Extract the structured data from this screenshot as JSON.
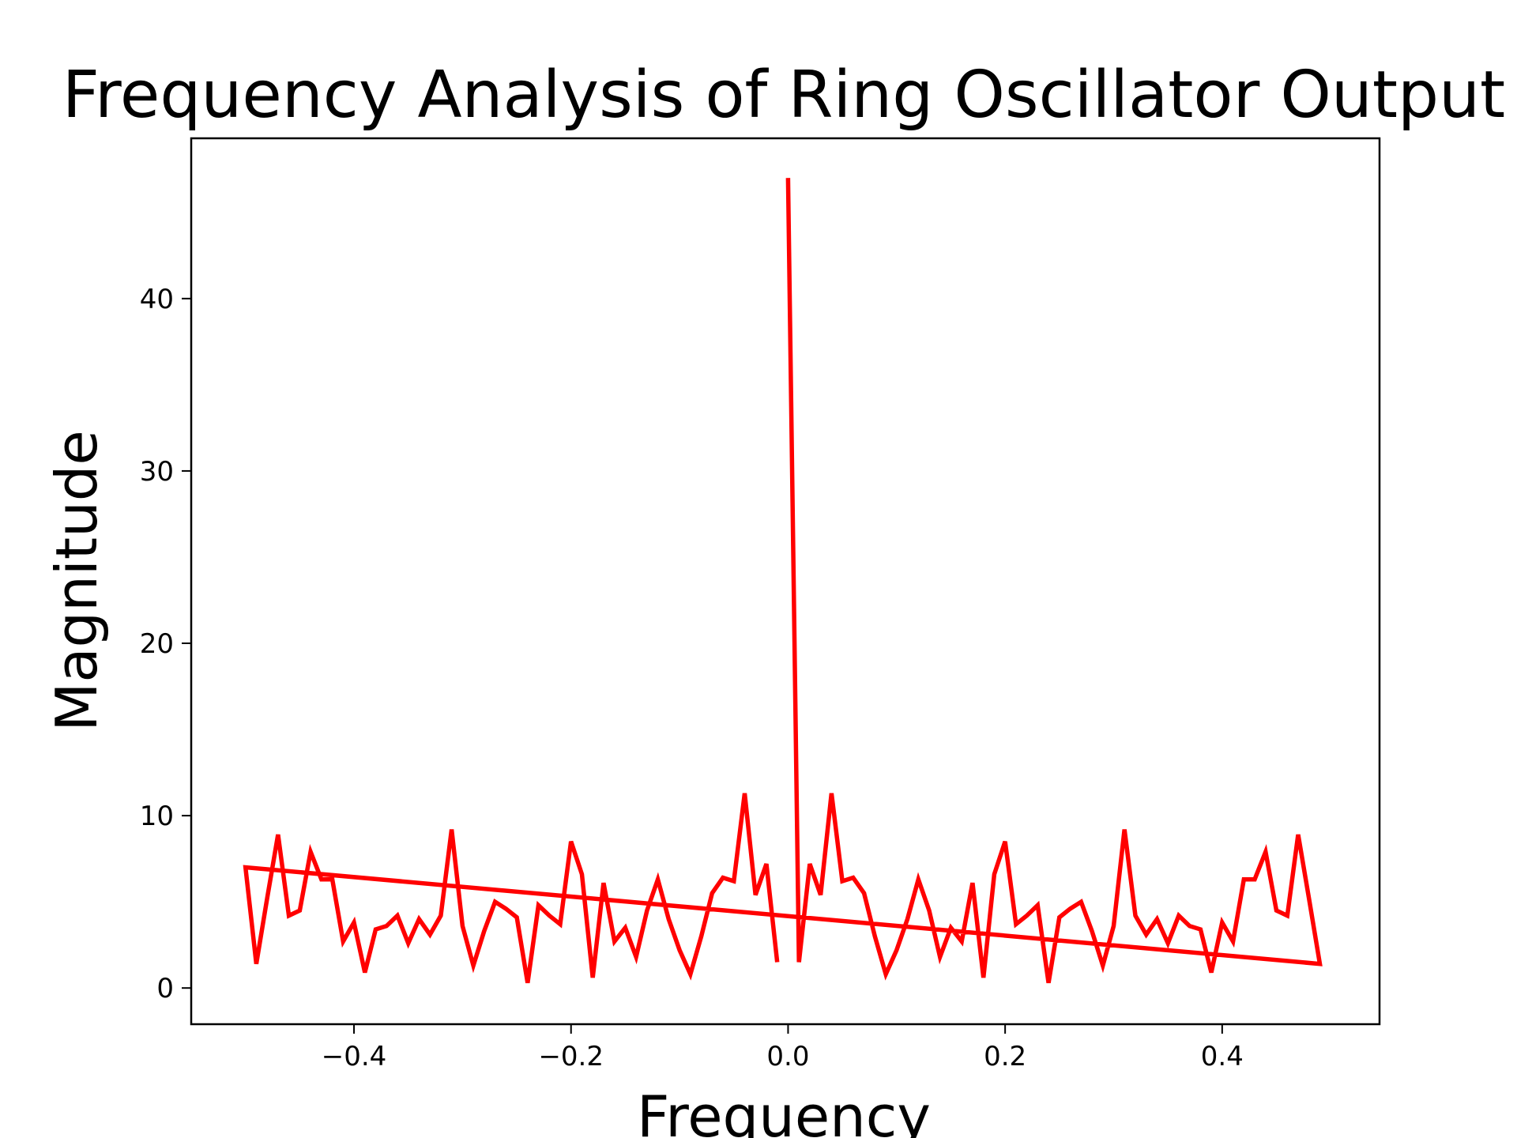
{
  "chart_data": {
    "type": "line",
    "title": "Frequency Analysis of Ring Oscillator Output",
    "xlabel": "Frequency",
    "ylabel": "Magnitude",
    "xlim": [
      -0.55,
      0.545
    ],
    "ylim": [
      -2.1,
      49.3
    ],
    "xticks": [
      -0.4,
      -0.2,
      0.0,
      0.2,
      0.4
    ],
    "xtick_labels": [
      "−0.4",
      "−0.2",
      "0.0",
      "0.2",
      "0.4"
    ],
    "yticks": [
      0,
      10,
      20,
      30,
      40
    ],
    "ytick_labels": [
      "0",
      "10",
      "20",
      "30",
      "40"
    ],
    "grid": false,
    "line_color": "#ff0000",
    "series": [
      {
        "x": [
          0.0,
          0.01,
          0.02,
          0.03,
          0.04,
          0.05,
          0.06,
          0.07,
          0.08,
          0.09,
          0.1,
          0.11,
          0.12,
          0.13,
          0.14,
          0.15,
          0.16,
          0.17,
          0.18,
          0.19,
          0.2,
          0.21,
          0.22,
          0.23,
          0.24,
          0.25,
          0.26,
          0.27,
          0.28,
          0.29,
          0.3,
          0.31,
          0.32,
          0.33,
          0.34,
          0.35,
          0.36,
          0.37,
          0.38,
          0.39,
          0.4,
          0.41,
          0.42,
          0.43,
          0.44,
          0.45,
          0.46,
          0.47,
          0.48,
          0.49,
          -0.5,
          -0.49,
          -0.48,
          -0.47,
          -0.46,
          -0.45,
          -0.44,
          -0.43,
          -0.42,
          -0.41,
          -0.4,
          -0.39,
          -0.38,
          -0.37,
          -0.36,
          -0.35,
          -0.34,
          -0.33,
          -0.32,
          -0.31,
          -0.3,
          -0.29,
          -0.28,
          -0.27,
          -0.26,
          -0.25,
          -0.24,
          -0.23,
          -0.22,
          -0.21,
          -0.2,
          -0.19,
          -0.18,
          -0.17,
          -0.16,
          -0.15,
          -0.14,
          -0.13,
          -0.12,
          -0.11,
          -0.1,
          -0.09,
          -0.08,
          -0.07,
          -0.06,
          -0.05,
          -0.04,
          -0.03,
          -0.02,
          -0.01
        ],
        "y": [
          47.0,
          1.5,
          7.2,
          5.4,
          11.3,
          6.2,
          6.4,
          5.5,
          3.0,
          0.8,
          2.2,
          4.0,
          6.3,
          4.5,
          1.8,
          3.5,
          2.7,
          6.1,
          0.6,
          6.6,
          8.5,
          3.7,
          4.2,
          4.8,
          0.3,
          4.1,
          4.6,
          5.0,
          3.3,
          1.3,
          3.6,
          9.2,
          4.2,
          3.1,
          4.0,
          2.6,
          4.2,
          3.6,
          3.4,
          0.9,
          3.8,
          2.7,
          6.3,
          6.3,
          7.9,
          4.5,
          4.2,
          8.9,
          5.2,
          1.4,
          7.0,
          1.4,
          5.2,
          8.9,
          4.2,
          4.5,
          7.9,
          6.3,
          6.3,
          2.7,
          3.8,
          0.9,
          3.4,
          3.6,
          4.2,
          2.6,
          4.0,
          3.1,
          4.2,
          9.2,
          3.6,
          1.3,
          3.3,
          5.0,
          4.6,
          4.1,
          0.3,
          4.8,
          4.2,
          3.7,
          8.5,
          6.6,
          0.6,
          6.1,
          2.7,
          3.5,
          1.8,
          4.5,
          6.3,
          4.0,
          2.2,
          0.8,
          3.0,
          5.5,
          6.4,
          6.2,
          11.3,
          5.4,
          7.2,
          1.5
        ]
      }
    ]
  }
}
